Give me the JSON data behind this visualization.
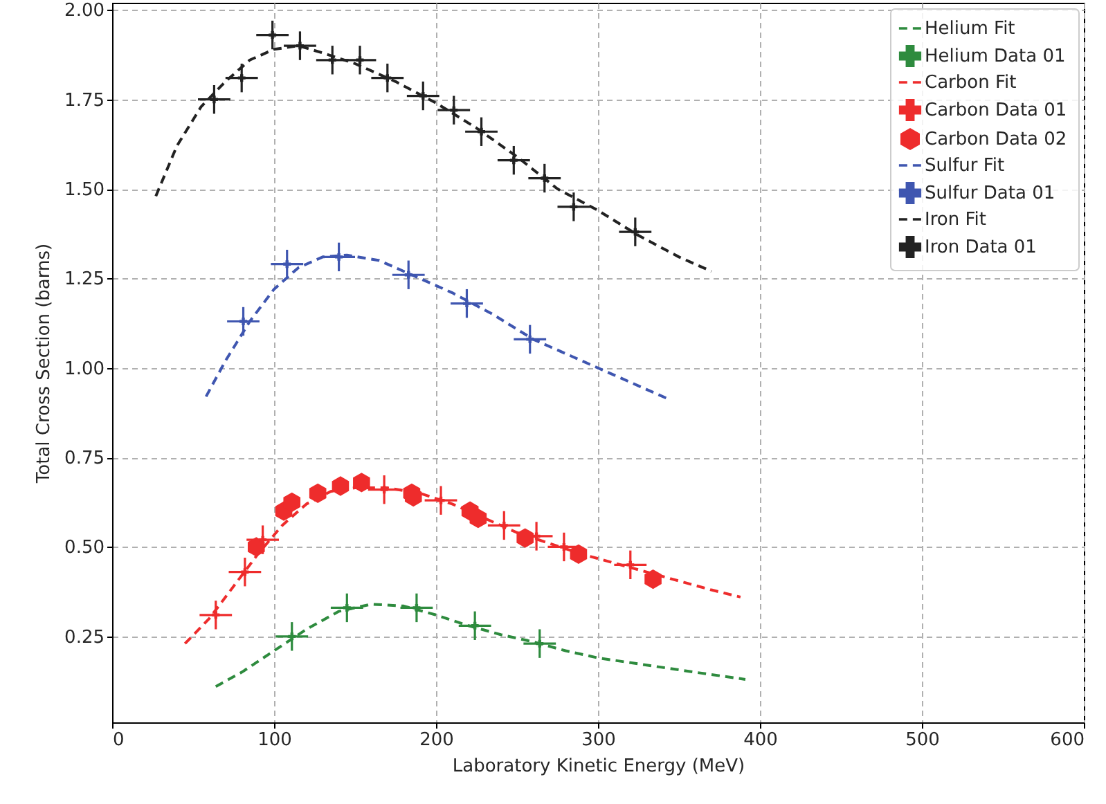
{
  "chart_data": {
    "type": "scatter",
    "xlabel": "Laboratory Kinetic Energy (MeV)",
    "ylabel": "Total Cross Section (barns)",
    "xlim": [
      0,
      600
    ],
    "xticks": [
      0,
      100,
      200,
      300,
      400,
      500,
      600
    ],
    "ylim": [
      0.01,
      2.02
    ],
    "yticks": [
      {
        "value": 0.25,
        "label": "0.25"
      },
      {
        "value": 0.5,
        "label": "0.50"
      },
      {
        "value": 0.75,
        "label": "0.75"
      },
      {
        "value": 1,
        "label": "1.00"
      },
      {
        "value": 1.25,
        "label": "1.25"
      },
      {
        "value": 1.5,
        "label": "1.50"
      },
      {
        "value": 1.75,
        "label": "1.75"
      },
      {
        "value": 2,
        "label": "2.00"
      }
    ],
    "grid": true,
    "legend": "top right",
    "series": [
      {
        "name": "Helium Fit",
        "type": "line",
        "line_style": "dashed",
        "marker": "none",
        "color": "#2e8b3e",
        "x": [
          64,
          80,
          100,
          120,
          140,
          160,
          180,
          200,
          220,
          240,
          260,
          280,
          300,
          330,
          360,
          391
        ],
        "values": [
          0.11,
          0.15,
          0.21,
          0.27,
          0.32,
          0.34,
          0.335,
          0.31,
          0.28,
          0.255,
          0.235,
          0.21,
          0.19,
          0.17,
          0.15,
          0.13
        ]
      },
      {
        "name": "Helium Data 01",
        "marker": "cross",
        "color": "#2e8b3e",
        "x": [
          111,
          145,
          188,
          224,
          264
        ],
        "values": [
          0.25,
          0.33,
          0.33,
          0.28,
          0.23
        ],
        "errors": [
          0.04,
          0.04,
          0.04,
          0.04,
          0.04
        ],
        "xerrors": [
          10,
          10,
          10,
          10,
          10
        ]
      },
      {
        "name": "Carbon Fit",
        "type": "line",
        "line_style": "dashed",
        "marker": "none",
        "color": "#ee2c2c",
        "x": [
          45,
          60,
          75,
          90,
          105,
          120,
          135,
          150,
          170,
          190,
          210,
          230,
          250,
          270,
          290,
          310,
          330,
          350,
          370,
          388
        ],
        "values": [
          0.23,
          0.3,
          0.39,
          0.48,
          0.56,
          0.62,
          0.655,
          0.665,
          0.665,
          0.65,
          0.62,
          0.58,
          0.54,
          0.51,
          0.48,
          0.455,
          0.43,
          0.405,
          0.38,
          0.36
        ]
      },
      {
        "name": "Carbon Data 01",
        "marker": "cross",
        "color": "#ee2c2c",
        "x": [
          64,
          82,
          93,
          168,
          203,
          242,
          262,
          279,
          320
        ],
        "values": [
          0.31,
          0.43,
          0.52,
          0.66,
          0.63,
          0.56,
          0.53,
          0.5,
          0.45
        ],
        "errors": [
          0.04,
          0.04,
          0.04,
          0.04,
          0.04,
          0.04,
          0.04,
          0.04,
          0.04
        ],
        "xerrors": [
          10,
          10,
          10,
          10,
          10,
          10,
          10,
          10,
          10
        ]
      },
      {
        "name": "Carbon Data 02",
        "color": "#ee2c2c",
        "x": [
          89,
          106,
          111,
          127,
          141,
          154,
          185,
          186,
          221,
          226,
          255,
          288,
          334
        ],
        "values": [
          0.5,
          0.6,
          0.625,
          0.65,
          0.67,
          0.68,
          0.65,
          0.64,
          0.6,
          0.58,
          0.525,
          0.48,
          0.41
        ]
      },
      {
        "name": "Sulfur Fit",
        "type": "line",
        "line_style": "dashed",
        "marker": "none",
        "color": "#3f56b0",
        "x": [
          58,
          70,
          85,
          100,
          115,
          130,
          145,
          165,
          185,
          210,
          235,
          260,
          285,
          310,
          330,
          345
        ],
        "values": [
          0.92,
          1.02,
          1.13,
          1.22,
          1.28,
          1.31,
          1.315,
          1.3,
          1.26,
          1.21,
          1.15,
          1.08,
          1.03,
          0.98,
          0.94,
          0.91
        ]
      },
      {
        "name": "Sulfur Data 01",
        "marker": "cross",
        "color": "#3f56b0",
        "x": [
          81,
          108,
          140,
          183,
          219,
          258
        ],
        "values": [
          1.13,
          1.29,
          1.31,
          1.26,
          1.18,
          1.08
        ],
        "errors": [
          0.04,
          0.04,
          0.04,
          0.04,
          0.04,
          0.04
        ],
        "xerrors": [
          10,
          10,
          10,
          10,
          10,
          10
        ]
      },
      {
        "name": "Iron Fit",
        "type": "line",
        "line_style": "dashed",
        "marker": "none",
        "color": "#222222",
        "x": [
          27,
          40,
          55,
          70,
          85,
          100,
          115,
          130,
          150,
          175,
          200,
          225,
          250,
          275,
          300,
          325,
          350,
          370
        ],
        "values": [
          1.48,
          1.62,
          1.73,
          1.8,
          1.86,
          1.89,
          1.9,
          1.88,
          1.85,
          1.8,
          1.74,
          1.67,
          1.59,
          1.5,
          1.44,
          1.37,
          1.31,
          1.27
        ]
      },
      {
        "name": "Iron Data 01",
        "marker": "cross",
        "color": "#222222",
        "x": [
          63,
          80,
          99,
          116,
          136,
          153,
          170,
          192,
          211,
          228,
          248,
          267,
          285,
          323
        ],
        "values": [
          1.75,
          1.81,
          1.93,
          1.9,
          1.86,
          1.86,
          1.81,
          1.76,
          1.72,
          1.66,
          1.58,
          1.53,
          1.45,
          1.38
        ],
        "errors": [
          0.04,
          0.04,
          0.04,
          0.04,
          0.04,
          0.04,
          0.04,
          0.04,
          0.04,
          0.04,
          0.04,
          0.04,
          0.04,
          0.04
        ],
        "xerrors": [
          10,
          10,
          10,
          10,
          10,
          10,
          10,
          10,
          10,
          10,
          10,
          10,
          10,
          10
        ]
      }
    ]
  }
}
